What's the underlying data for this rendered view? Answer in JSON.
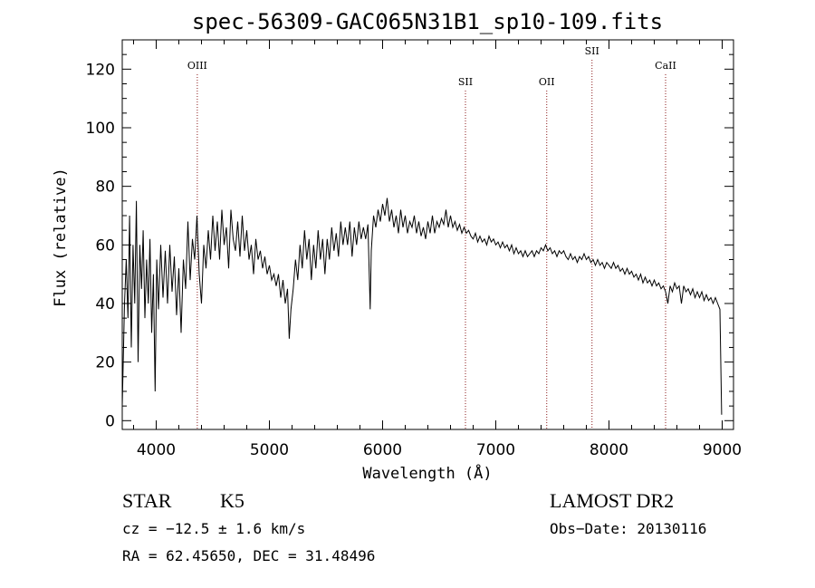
{
  "chart_data": {
    "type": "line",
    "title": "spec-56309-GAC065N31B1_sp10-109.fits",
    "xlabel": "Wavelength (Å)",
    "ylabel": "Flux (relative)",
    "xlim": [
      3700,
      9100
    ],
    "ylim": [
      -3,
      130
    ],
    "x_ticks": [
      4000,
      5000,
      6000,
      7000,
      8000,
      9000
    ],
    "y_ticks": [
      0,
      20,
      40,
      60,
      80,
      100,
      120
    ],
    "grid": false,
    "series": [
      {
        "points": [
          [
            3700,
            5
          ],
          [
            3720,
            40
          ],
          [
            3735,
            55
          ],
          [
            3750,
            35
          ],
          [
            3765,
            70
          ],
          [
            3780,
            25
          ],
          [
            3795,
            60
          ],
          [
            3810,
            40
          ],
          [
            3825,
            75
          ],
          [
            3840,
            20
          ],
          [
            3855,
            60
          ],
          [
            3870,
            45
          ],
          [
            3885,
            65
          ],
          [
            3900,
            35
          ],
          [
            3915,
            55
          ],
          [
            3930,
            40
          ],
          [
            3945,
            62
          ],
          [
            3960,
            30
          ],
          [
            3975,
            50
          ],
          [
            3990,
            10
          ],
          [
            4005,
            55
          ],
          [
            4020,
            38
          ],
          [
            4040,
            60
          ],
          [
            4060,
            42
          ],
          [
            4080,
            58
          ],
          [
            4100,
            40
          ],
          [
            4120,
            60
          ],
          [
            4140,
            44
          ],
          [
            4160,
            56
          ],
          [
            4180,
            36
          ],
          [
            4200,
            52
          ],
          [
            4220,
            30
          ],
          [
            4240,
            55
          ],
          [
            4260,
            45
          ],
          [
            4280,
            68
          ],
          [
            4300,
            48
          ],
          [
            4320,
            62
          ],
          [
            4340,
            55
          ],
          [
            4360,
            70
          ],
          [
            4380,
            50
          ],
          [
            4400,
            40
          ],
          [
            4420,
            60
          ],
          [
            4440,
            52
          ],
          [
            4460,
            65
          ],
          [
            4480,
            55
          ],
          [
            4500,
            70
          ],
          [
            4520,
            58
          ],
          [
            4540,
            68
          ],
          [
            4560,
            55
          ],
          [
            4580,
            72
          ],
          [
            4600,
            60
          ],
          [
            4620,
            66
          ],
          [
            4640,
            52
          ],
          [
            4660,
            72
          ],
          [
            4680,
            62
          ],
          [
            4700,
            58
          ],
          [
            4720,
            68
          ],
          [
            4740,
            56
          ],
          [
            4760,
            70
          ],
          [
            4780,
            58
          ],
          [
            4800,
            65
          ],
          [
            4820,
            55
          ],
          [
            4840,
            60
          ],
          [
            4860,
            50
          ],
          [
            4880,
            62
          ],
          [
            4900,
            55
          ],
          [
            4920,
            58
          ],
          [
            4940,
            52
          ],
          [
            4960,
            56
          ],
          [
            4980,
            50
          ],
          [
            5000,
            53
          ],
          [
            5020,
            48
          ],
          [
            5040,
            50
          ],
          [
            5060,
            46
          ],
          [
            5080,
            50
          ],
          [
            5100,
            42
          ],
          [
            5120,
            48
          ],
          [
            5140,
            40
          ],
          [
            5160,
            45
          ],
          [
            5175,
            28
          ],
          [
            5190,
            38
          ],
          [
            5210,
            45
          ],
          [
            5230,
            55
          ],
          [
            5250,
            48
          ],
          [
            5270,
            60
          ],
          [
            5290,
            52
          ],
          [
            5310,
            65
          ],
          [
            5330,
            55
          ],
          [
            5350,
            62
          ],
          [
            5370,
            48
          ],
          [
            5390,
            60
          ],
          [
            5410,
            52
          ],
          [
            5430,
            65
          ],
          [
            5450,
            55
          ],
          [
            5470,
            62
          ],
          [
            5490,
            50
          ],
          [
            5510,
            62
          ],
          [
            5530,
            55
          ],
          [
            5550,
            66
          ],
          [
            5570,
            58
          ],
          [
            5590,
            64
          ],
          [
            5610,
            56
          ],
          [
            5630,
            68
          ],
          [
            5650,
            60
          ],
          [
            5670,
            66
          ],
          [
            5690,
            60
          ],
          [
            5710,
            68
          ],
          [
            5730,
            56
          ],
          [
            5750,
            66
          ],
          [
            5770,
            60
          ],
          [
            5790,
            68
          ],
          [
            5810,
            62
          ],
          [
            5830,
            66
          ],
          [
            5850,
            62
          ],
          [
            5870,
            67
          ],
          [
            5890,
            38
          ],
          [
            5900,
            58
          ],
          [
            5920,
            70
          ],
          [
            5940,
            66
          ],
          [
            5960,
            72
          ],
          [
            5980,
            68
          ],
          [
            6000,
            74
          ],
          [
            6020,
            70
          ],
          [
            6040,
            76
          ],
          [
            6060,
            68
          ],
          [
            6080,
            72
          ],
          [
            6100,
            66
          ],
          [
            6120,
            70
          ],
          [
            6140,
            64
          ],
          [
            6160,
            72
          ],
          [
            6180,
            66
          ],
          [
            6200,
            70
          ],
          [
            6220,
            64
          ],
          [
            6240,
            68
          ],
          [
            6260,
            66
          ],
          [
            6280,
            70
          ],
          [
            6300,
            64
          ],
          [
            6320,
            68
          ],
          [
            6340,
            63
          ],
          [
            6360,
            66
          ],
          [
            6380,
            62
          ],
          [
            6400,
            68
          ],
          [
            6420,
            64
          ],
          [
            6440,
            70
          ],
          [
            6460,
            64
          ],
          [
            6480,
            68
          ],
          [
            6500,
            66
          ],
          [
            6520,
            69
          ],
          [
            6540,
            67
          ],
          [
            6560,
            72
          ],
          [
            6580,
            66
          ],
          [
            6600,
            70
          ],
          [
            6620,
            66
          ],
          [
            6640,
            68
          ],
          [
            6660,
            65
          ],
          [
            6680,
            67
          ],
          [
            6700,
            64
          ],
          [
            6720,
            66
          ],
          [
            6740,
            64
          ],
          [
            6760,
            65
          ],
          [
            6780,
            63
          ],
          [
            6800,
            62
          ],
          [
            6820,
            64
          ],
          [
            6840,
            61
          ],
          [
            6860,
            63
          ],
          [
            6880,
            61
          ],
          [
            6900,
            62
          ],
          [
            6920,
            60
          ],
          [
            6940,
            63
          ],
          [
            6960,
            61
          ],
          [
            6980,
            62
          ],
          [
            7000,
            60
          ],
          [
            7020,
            61
          ],
          [
            7040,
            59
          ],
          [
            7060,
            61
          ],
          [
            7080,
            59
          ],
          [
            7100,
            60
          ],
          [
            7120,
            58
          ],
          [
            7140,
            60
          ],
          [
            7160,
            57
          ],
          [
            7180,
            59
          ],
          [
            7200,
            57
          ],
          [
            7220,
            58
          ],
          [
            7240,
            56
          ],
          [
            7260,
            58
          ],
          [
            7280,
            56
          ],
          [
            7300,
            57
          ],
          [
            7320,
            58
          ],
          [
            7340,
            56
          ],
          [
            7360,
            58
          ],
          [
            7380,
            57
          ],
          [
            7400,
            59
          ],
          [
            7420,
            58
          ],
          [
            7440,
            60
          ],
          [
            7460,
            58
          ],
          [
            7480,
            59
          ],
          [
            7500,
            57
          ],
          [
            7520,
            58
          ],
          [
            7540,
            56
          ],
          [
            7560,
            58
          ],
          [
            7580,
            57
          ],
          [
            7600,
            58
          ],
          [
            7620,
            56
          ],
          [
            7640,
            55
          ],
          [
            7660,
            57
          ],
          [
            7680,
            55
          ],
          [
            7700,
            56
          ],
          [
            7720,
            54
          ],
          [
            7740,
            56
          ],
          [
            7760,
            55
          ],
          [
            7780,
            57
          ],
          [
            7800,
            55
          ],
          [
            7820,
            56
          ],
          [
            7840,
            54
          ],
          [
            7860,
            55
          ],
          [
            7880,
            53
          ],
          [
            7900,
            55
          ],
          [
            7920,
            53
          ],
          [
            7940,
            54
          ],
          [
            7960,
            52
          ],
          [
            7980,
            54
          ],
          [
            8000,
            53
          ],
          [
            8020,
            52
          ],
          [
            8040,
            54
          ],
          [
            8060,
            52
          ],
          [
            8080,
            53
          ],
          [
            8100,
            51
          ],
          [
            8120,
            52
          ],
          [
            8140,
            50
          ],
          [
            8160,
            52
          ],
          [
            8180,
            50
          ],
          [
            8200,
            51
          ],
          [
            8220,
            49
          ],
          [
            8240,
            50
          ],
          [
            8260,
            48
          ],
          [
            8280,
            50
          ],
          [
            8300,
            47
          ],
          [
            8320,
            49
          ],
          [
            8340,
            47
          ],
          [
            8360,
            48
          ],
          [
            8380,
            46
          ],
          [
            8400,
            48
          ],
          [
            8420,
            46
          ],
          [
            8440,
            47
          ],
          [
            8460,
            45
          ],
          [
            8480,
            46
          ],
          [
            8500,
            44
          ],
          [
            8520,
            40
          ],
          [
            8540,
            46
          ],
          [
            8560,
            44
          ],
          [
            8580,
            47
          ],
          [
            8600,
            45
          ],
          [
            8620,
            46
          ],
          [
            8640,
            40
          ],
          [
            8660,
            46
          ],
          [
            8680,
            44
          ],
          [
            8700,
            45
          ],
          [
            8720,
            43
          ],
          [
            8740,
            45
          ],
          [
            8760,
            42
          ],
          [
            8780,
            44
          ],
          [
            8800,
            42
          ],
          [
            8820,
            44
          ],
          [
            8840,
            41
          ],
          [
            8860,
            43
          ],
          [
            8880,
            41
          ],
          [
            8900,
            42
          ],
          [
            8920,
            40
          ],
          [
            8940,
            42
          ],
          [
            8960,
            40
          ],
          [
            8980,
            38
          ],
          [
            8995,
            2
          ]
        ]
      }
    ],
    "lines": [
      {
        "label": "OIII",
        "x": 4363
      },
      {
        "label": "SII",
        "x": 6732
      },
      {
        "label": "OII",
        "x": 7450
      },
      {
        "label": "SII",
        "x": 7850
      },
      {
        "label": "CaII",
        "x": 8500
      }
    ]
  },
  "info": {
    "class": "STAR",
    "subclass": "K5",
    "cz": "cz = −12.5 ± 1.6 km/s",
    "radec": "RA =  62.45650, DEC =  31.48496",
    "survey": "LAMOST DR2",
    "obs_date": "Obs−Date: 20130116"
  }
}
